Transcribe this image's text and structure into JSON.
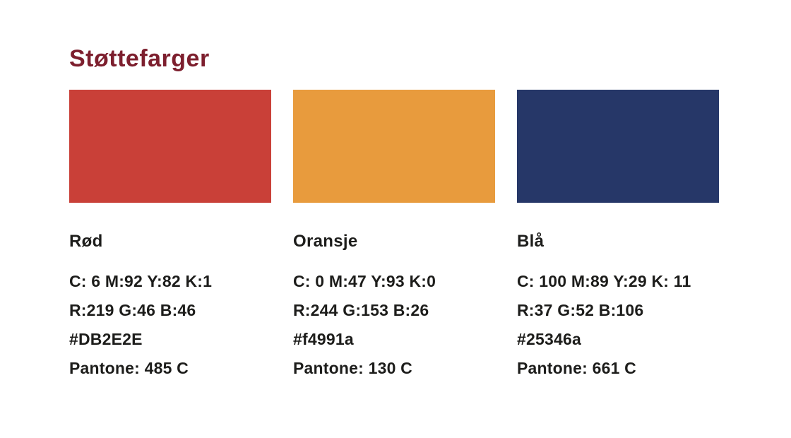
{
  "page": {
    "background": "#ffffff",
    "text_color": "#1d1d1b"
  },
  "title": {
    "text": "Støttefarger",
    "color": "#7d1f2e"
  },
  "palette": [
    {
      "name": "Rød",
      "swatch_color": "#c94038",
      "cmyk": "C: 6 M:92 Y:82 K:1",
      "rgb": "R:219 G:46 B:46",
      "hex": "#DB2E2E",
      "pantone": "Pantone: 485 C"
    },
    {
      "name": "Oransje",
      "swatch_color": "#e89b3d",
      "cmyk": "C: 0 M:47 Y:93 K:0",
      "rgb": "R:244 G:153 B:26",
      "hex": "#f4991a",
      "pantone": "Pantone: 130 C"
    },
    {
      "name": "Blå",
      "swatch_color": "#263768",
      "cmyk": "C: 100 M:89 Y:29 K: 11",
      "rgb": "R:37 G:52 B:106",
      "hex": "#25346a",
      "pantone": "Pantone: 661 C"
    }
  ]
}
